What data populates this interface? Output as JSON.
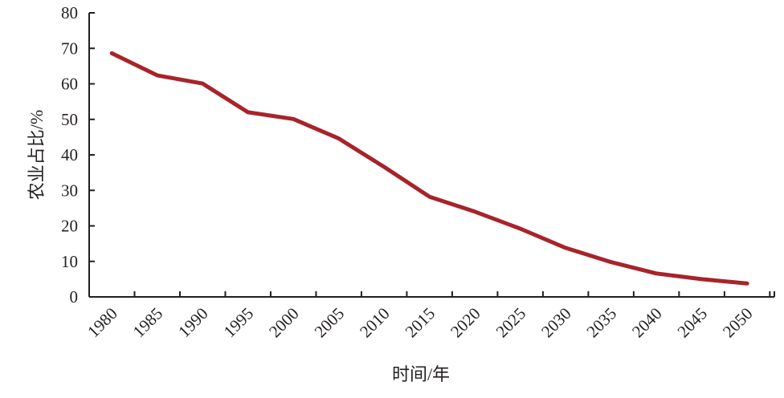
{
  "chart_data": {
    "type": "line",
    "title": "",
    "xlabel": "时间/年",
    "ylabel": "农业占比/%",
    "ylim": [
      0,
      80
    ],
    "yticks": [
      0,
      10,
      20,
      30,
      40,
      50,
      60,
      70,
      80
    ],
    "grid": false,
    "legend": null,
    "categories": [
      "1980",
      "1985",
      "1990",
      "1995",
      "2000",
      "2005",
      "2010",
      "2015",
      "2020",
      "2025",
      "2030",
      "2035",
      "2040",
      "2045",
      "2050"
    ],
    "series": [
      {
        "name": "农业占比",
        "color": "#a8232a",
        "values": [
          68.6,
          62.4,
          60.1,
          52.0,
          50.1,
          44.6,
          36.6,
          28.2,
          24.0,
          19.2,
          13.8,
          9.8,
          6.6,
          5.0,
          3.8
        ]
      }
    ]
  }
}
